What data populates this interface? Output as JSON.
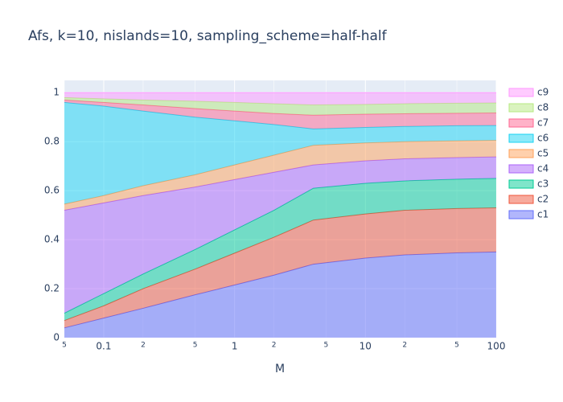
{
  "chart_data": {
    "type": "area",
    "stacked": true,
    "log_x": true,
    "grid": true,
    "title": "Afs, k=10, nislands=10, sampling_scheme=half-half",
    "x_label": "M",
    "x": [
      0.05,
      0.1,
      0.2,
      0.5,
      1,
      2,
      4,
      10,
      20,
      50,
      100
    ],
    "xlim": [
      0.05,
      100
    ],
    "xticks": [
      {
        "value": 0.05,
        "label": "5"
      },
      0.1,
      {
        "value": 0.2,
        "label": "2"
      },
      {
        "value": 0.5,
        "label": "5"
      },
      1,
      {
        "value": 2,
        "label": "2"
      },
      {
        "value": 5,
        "label": "5"
      },
      10,
      {
        "value": 20,
        "label": "2"
      },
      {
        "value": 50,
        "label": "5"
      },
      100
    ],
    "ylim": [
      0,
      1.05
    ],
    "yticks": [
      0,
      0.2,
      0.4,
      0.6,
      0.8,
      1
    ],
    "series": [
      {
        "name": "c1",
        "color": "#636efa",
        "values": [
          0.04,
          0.08,
          0.12,
          0.175,
          0.215,
          0.255,
          0.3,
          0.325,
          0.338,
          0.346,
          0.35
        ]
      },
      {
        "name": "c2",
        "color": "#EF553B",
        "values": [
          0.03,
          0.05,
          0.08,
          0.105,
          0.13,
          0.155,
          0.18,
          0.18,
          0.182,
          0.181,
          0.18
        ]
      },
      {
        "name": "c3",
        "color": "#00cc96",
        "values": [
          0.03,
          0.05,
          0.06,
          0.08,
          0.095,
          0.11,
          0.13,
          0.125,
          0.12,
          0.12,
          0.12
        ]
      },
      {
        "name": "c4",
        "color": "#ab63fa",
        "values": [
          0.42,
          0.37,
          0.32,
          0.255,
          0.205,
          0.155,
          0.095,
          0.092,
          0.09,
          0.088,
          0.088
        ]
      },
      {
        "name": "c5",
        "color": "#FFA15A",
        "values": [
          0.025,
          0.03,
          0.04,
          0.05,
          0.06,
          0.07,
          0.08,
          0.073,
          0.07,
          0.068,
          0.067
        ]
      },
      {
        "name": "c6",
        "color": "#19d3f3",
        "values": [
          0.415,
          0.365,
          0.305,
          0.235,
          0.18,
          0.125,
          0.067,
          0.063,
          0.062,
          0.062,
          0.061
        ]
      },
      {
        "name": "c7",
        "color": "#FF6692",
        "values": [
          0.01,
          0.015,
          0.025,
          0.035,
          0.04,
          0.045,
          0.056,
          0.054,
          0.052,
          0.051,
          0.051
        ]
      },
      {
        "name": "c8",
        "color": "#B6E880",
        "values": [
          0.01,
          0.015,
          0.02,
          0.03,
          0.035,
          0.04,
          0.042,
          0.04,
          0.041,
          0.041,
          0.041
        ]
      },
      {
        "name": "c9",
        "color": "#FF97FF",
        "values": [
          0.02,
          0.025,
          0.03,
          0.035,
          0.04,
          0.045,
          0.05,
          0.048,
          0.045,
          0.043,
          0.042
        ]
      }
    ]
  }
}
